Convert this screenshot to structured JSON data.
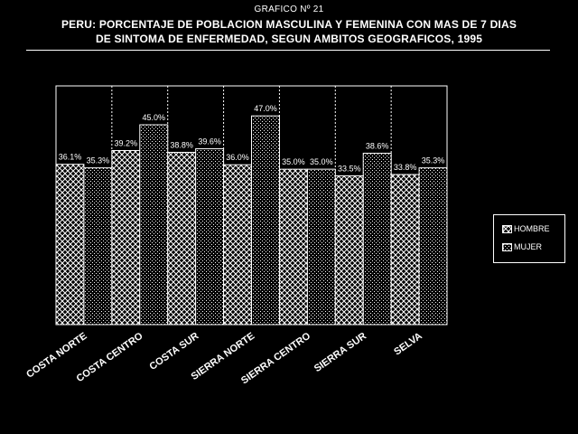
{
  "header": {
    "figure_label": "GRAFICO Nº 21",
    "title_line1": "PERU: PORCENTAJE DE POBLACION MASCULINA Y FEMENINA CON MAS DE 7 DIAS",
    "title_line2": "DE SINTOMA DE ENFERMEDAD, SEGUN AMBITOS GEOGRAFICOS, 1995"
  },
  "legend": {
    "hombre": "HOMBRE",
    "mujer": "MUJER"
  },
  "colors": {
    "background": "#000000",
    "foreground": "#ffffff"
  },
  "chart_data": {
    "type": "bar",
    "title": "PERU: PORCENTAJE DE POBLACION MASCULINA Y FEMENINA CON MAS DE 7 DIAS DE SINTOMA DE ENFERMEDAD, SEGUN AMBITOS GEOGRAFICOS, 1995",
    "categories": [
      "COSTA NORTE",
      "COSTA CENTRO",
      "COSTA SUR",
      "SIERRA NORTE",
      "SIERRA CENTRO",
      "SIERRA SUR",
      "SELVA"
    ],
    "series": [
      {
        "name": "HOMBRE",
        "pattern": "crosshatch",
        "values": [
          36.1,
          39.2,
          38.8,
          36.0,
          35.0,
          33.5,
          33.8
        ],
        "labels": [
          "36.1%",
          "39.2%",
          "38.8%",
          "36.0%",
          "35.0%",
          "33.5%",
          "33.8%"
        ]
      },
      {
        "name": "MUJER",
        "pattern": "dots",
        "values": [
          35.3,
          45.0,
          39.6,
          47.0,
          35.0,
          38.6,
          35.3
        ],
        "labels": [
          "35.3%",
          "45.0%",
          "39.6%",
          "47.0%",
          "35.0%",
          "38.6%",
          "35.3%"
        ]
      }
    ],
    "ylim": [
      0,
      50
    ],
    "xlabel": "",
    "ylabel": "",
    "legend_position": "right",
    "category_separators": "dotted"
  }
}
